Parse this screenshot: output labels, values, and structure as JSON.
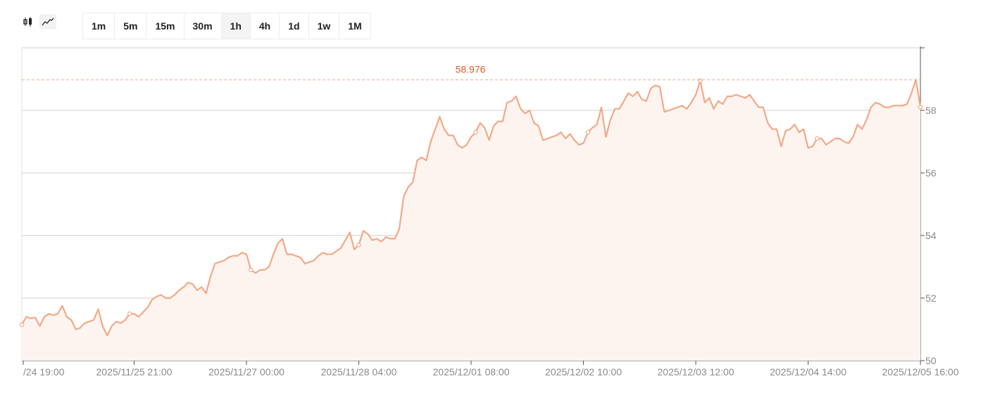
{
  "toolbar": {
    "chart_types": [
      {
        "icon": "candlestick-icon",
        "active": false
      },
      {
        "icon": "line-chart-icon",
        "active": true
      }
    ],
    "intervals": [
      {
        "label": "1m",
        "active": false
      },
      {
        "label": "5m",
        "active": false
      },
      {
        "label": "15m",
        "active": false
      },
      {
        "label": "30m",
        "active": false
      },
      {
        "label": "1h",
        "active": true
      },
      {
        "label": "4h",
        "active": false
      },
      {
        "label": "1d",
        "active": false
      },
      {
        "label": "1w",
        "active": false
      },
      {
        "label": "1M",
        "active": false
      }
    ]
  },
  "colors": {
    "line": "#f3a987",
    "fill": "#fdf4f0",
    "max_line": "#f3a987",
    "max_label": "#e05a2b",
    "grid": "#cfcfcf",
    "axis_text": "#8a8a8a"
  },
  "chart_data": {
    "type": "area",
    "title": "",
    "xlabel": "",
    "ylabel": "",
    "ylim": [
      50,
      60
    ],
    "y_ticks": [
      50,
      52,
      54,
      56,
      58
    ],
    "x_ticks": [
      "/24 19:00",
      "2025/11/25 21:00",
      "2025/11/27 00:00",
      "2025/11/28 04:00",
      "2025/12/01 08:00",
      "2025/12/02 10:00",
      "2025/12/03 12:00",
      "2025/12/04 14:00",
      "2025/12/05 16:00"
    ],
    "max_value": 58.976,
    "max_label": "58.976",
    "grid": true,
    "values": [
      51.15,
      51.4,
      51.35,
      51.38,
      51.1,
      51.4,
      51.5,
      51.45,
      51.5,
      51.75,
      51.4,
      51.3,
      51.0,
      51.05,
      51.2,
      51.25,
      51.3,
      51.65,
      51.1,
      50.8,
      51.1,
      51.25,
      51.2,
      51.3,
      51.5,
      51.5,
      51.4,
      51.55,
      51.7,
      51.95,
      52.05,
      52.1,
      52.0,
      52.0,
      52.1,
      52.25,
      52.35,
      52.5,
      52.45,
      52.25,
      52.35,
      52.15,
      52.7,
      53.1,
      53.15,
      53.2,
      53.3,
      53.35,
      53.35,
      53.45,
      53.4,
      52.9,
      52.8,
      52.9,
      52.9,
      53.0,
      53.4,
      53.75,
      53.9,
      53.4,
      53.4,
      53.35,
      53.3,
      53.1,
      53.15,
      53.2,
      53.35,
      53.45,
      53.4,
      53.4,
      53.5,
      53.6,
      53.85,
      54.1,
      53.55,
      53.7,
      54.15,
      54.05,
      53.85,
      53.9,
      53.8,
      53.95,
      53.9,
      53.9,
      54.2,
      55.25,
      55.55,
      55.7,
      56.4,
      56.5,
      56.4,
      57.0,
      57.4,
      57.8,
      57.4,
      57.2,
      57.2,
      56.9,
      56.8,
      56.9,
      57.15,
      57.3,
      57.6,
      57.45,
      57.05,
      57.5,
      57.65,
      57.65,
      58.25,
      58.3,
      58.45,
      58.05,
      57.9,
      58.0,
      57.6,
      57.5,
      57.05,
      57.1,
      57.15,
      57.2,
      57.3,
      57.1,
      57.25,
      57.05,
      56.9,
      56.95,
      57.3,
      57.45,
      57.55,
      58.1,
      57.15,
      57.7,
      58.05,
      58.05,
      58.3,
      58.55,
      58.45,
      58.6,
      58.35,
      58.3,
      58.7,
      58.8,
      58.75,
      57.95,
      58.0,
      58.05,
      58.1,
      58.15,
      58.05,
      58.25,
      58.5,
      58.95,
      58.25,
      58.4,
      58.05,
      58.3,
      58.2,
      58.45,
      58.45,
      58.5,
      58.45,
      58.4,
      58.5,
      58.3,
      58.1,
      58.1,
      57.6,
      57.4,
      57.4,
      56.85,
      57.35,
      57.4,
      57.55,
      57.3,
      57.4,
      56.8,
      56.85,
      57.1,
      57.1,
      56.9,
      57.0,
      57.1,
      57.1,
      57.0,
      56.95,
      57.15,
      57.55,
      57.4,
      57.7,
      58.1,
      58.25,
      58.2,
      58.1,
      58.1,
      58.15,
      58.15,
      58.15,
      58.2,
      58.55,
      58.98,
      58.1
    ]
  }
}
